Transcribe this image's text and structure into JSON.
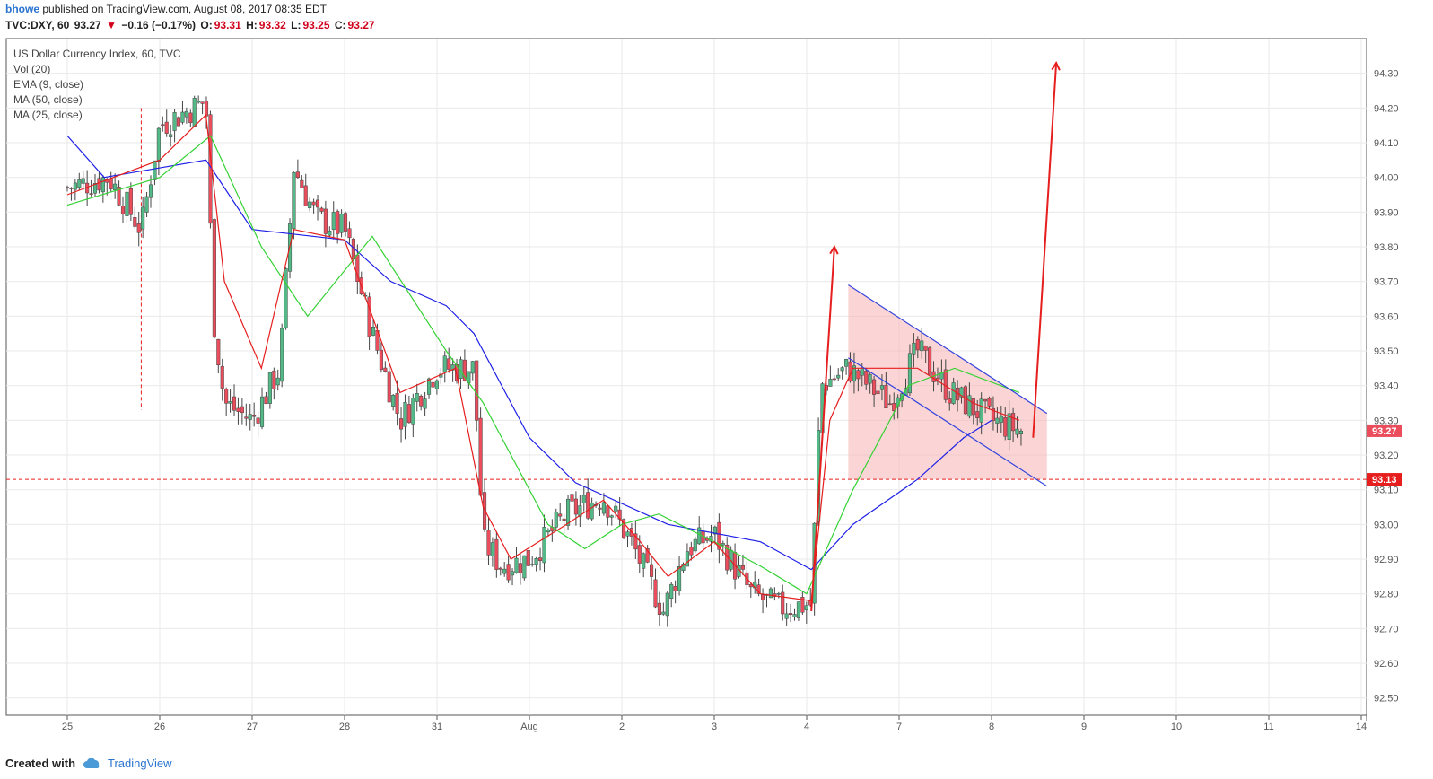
{
  "header": {
    "user": "bhowe",
    "published_text": "published on TradingView.com, August 08, 2017 08:35 EDT",
    "symbol": "TVC:DXY, 60",
    "last_price": "93.27",
    "change_arrow": "▼",
    "change": "−0.16 (−0.17%)",
    "o_label": "O:",
    "o_value": "93.31",
    "h_label": "H:",
    "h_value": "93.32",
    "l_label": "L:",
    "l_value": "93.25",
    "c_label": "C:",
    "c_value": "93.27"
  },
  "legend": {
    "title": "US Dollar Currency Index, 60, TVC",
    "items": [
      "Vol (20)",
      "EMA (9, close)",
      "MA (50, close)",
      "MA (25, close)"
    ]
  },
  "footer": {
    "created_with": "Created with",
    "brand": "TradingView"
  },
  "colors": {
    "up": "#53b987",
    "down": "#eb4d5c",
    "candle_edge": "#444444",
    "ema": "#e61e1e",
    "ma50": "#1e20e6",
    "ma25": "#35d235",
    "channel_fill": "#f7b3b3",
    "channel_line": "#3344dd",
    "arrow": "#e61e1e",
    "hline": "#e61e1e",
    "grid": "#e9e9e9"
  },
  "chart_data": {
    "type": "candlestick",
    "y_axis": {
      "min": 92.45,
      "max": 94.4,
      "ticks": [
        "92.50",
        "92.60",
        "92.70",
        "92.80",
        "92.90",
        "93.00",
        "93.10",
        "93.20",
        "93.30",
        "93.40",
        "93.50",
        "93.60",
        "93.70",
        "93.80",
        "93.90",
        "94.00",
        "94.10",
        "94.20",
        "94.30"
      ]
    },
    "x_axis": {
      "labels": [
        "25",
        "26",
        "27",
        "28",
        "31",
        "Aug",
        "2",
        "3",
        "4",
        "7",
        "8",
        "9",
        "10",
        "11",
        "14"
      ]
    },
    "price_labels": {
      "last": "93.27",
      "level": "93.13"
    },
    "horizontal_level": 93.13,
    "session_anchor": [
      {
        "x": 0,
        "p": 93.97
      },
      {
        "x": 0.45,
        "p": 94.0
      },
      {
        "x": 0.8,
        "p": 93.85
      },
      {
        "x": 1.0,
        "p": 94.15
      },
      {
        "x": 1.5,
        "p": 94.22
      },
      {
        "x": 1.58,
        "p": 93.6
      },
      {
        "x": 1.7,
        "p": 93.35
      },
      {
        "x": 2.0,
        "p": 93.3
      },
      {
        "x": 2.3,
        "p": 93.45
      },
      {
        "x": 2.45,
        "p": 94.03
      },
      {
        "x": 2.7,
        "p": 93.88
      },
      {
        "x": 3.0,
        "p": 93.85
      },
      {
        "x": 3.3,
        "p": 93.55
      },
      {
        "x": 3.6,
        "p": 93.3
      },
      {
        "x": 4.0,
        "p": 93.45
      },
      {
        "x": 4.4,
        "p": 93.45
      },
      {
        "x": 4.5,
        "p": 92.95
      },
      {
        "x": 4.7,
        "p": 92.88
      },
      {
        "x": 5.0,
        "p": 92.9
      },
      {
        "x": 5.4,
        "p": 93.03
      },
      {
        "x": 5.8,
        "p": 93.08
      },
      {
        "x": 6.1,
        "p": 92.95
      },
      {
        "x": 6.45,
        "p": 92.75
      },
      {
        "x": 6.7,
        "p": 92.93
      },
      {
        "x": 7.0,
        "p": 92.97
      },
      {
        "x": 7.4,
        "p": 92.8
      },
      {
        "x": 7.7,
        "p": 92.76
      },
      {
        "x": 8.05,
        "p": 92.77
      },
      {
        "x": 8.15,
        "p": 93.4
      },
      {
        "x": 8.45,
        "p": 93.45
      },
      {
        "x": 8.9,
        "p": 93.35
      },
      {
        "x": 9.2,
        "p": 93.5
      },
      {
        "x": 9.55,
        "p": 93.38
      },
      {
        "x": 10.0,
        "p": 93.3
      },
      {
        "x": 10.33,
        "p": 93.27
      }
    ],
    "ema9": [
      {
        "x": 0,
        "p": 93.95
      },
      {
        "x": 1.0,
        "p": 94.05
      },
      {
        "x": 1.5,
        "p": 94.18
      },
      {
        "x": 1.7,
        "p": 93.7
      },
      {
        "x": 2.1,
        "p": 93.45
      },
      {
        "x": 2.45,
        "p": 93.85
      },
      {
        "x": 3.0,
        "p": 93.82
      },
      {
        "x": 3.6,
        "p": 93.38
      },
      {
        "x": 4.2,
        "p": 93.45
      },
      {
        "x": 4.5,
        "p": 93.05
      },
      {
        "x": 4.8,
        "p": 92.9
      },
      {
        "x": 5.4,
        "p": 93.0
      },
      {
        "x": 5.8,
        "p": 93.07
      },
      {
        "x": 6.2,
        "p": 92.95
      },
      {
        "x": 6.5,
        "p": 92.85
      },
      {
        "x": 7.0,
        "p": 92.95
      },
      {
        "x": 7.5,
        "p": 92.8
      },
      {
        "x": 8.05,
        "p": 92.78
      },
      {
        "x": 8.25,
        "p": 93.3
      },
      {
        "x": 8.5,
        "p": 93.45
      },
      {
        "x": 9.2,
        "p": 93.45
      },
      {
        "x": 9.8,
        "p": 93.35
      },
      {
        "x": 10.3,
        "p": 93.3
      }
    ],
    "ma25": [
      {
        "x": 0,
        "p": 93.92
      },
      {
        "x": 1.0,
        "p": 94.0
      },
      {
        "x": 1.55,
        "p": 94.12
      },
      {
        "x": 2.1,
        "p": 93.8
      },
      {
        "x": 2.6,
        "p": 93.6
      },
      {
        "x": 3.3,
        "p": 93.83
      },
      {
        "x": 4.1,
        "p": 93.5
      },
      {
        "x": 4.5,
        "p": 93.35
      },
      {
        "x": 5.2,
        "p": 93.0
      },
      {
        "x": 5.6,
        "p": 92.93
      },
      {
        "x": 6.0,
        "p": 93.0
      },
      {
        "x": 6.4,
        "p": 93.03
      },
      {
        "x": 7.0,
        "p": 92.95
      },
      {
        "x": 7.5,
        "p": 92.88
      },
      {
        "x": 8.0,
        "p": 92.8
      },
      {
        "x": 8.5,
        "p": 93.1
      },
      {
        "x": 9.1,
        "p": 93.4
      },
      {
        "x": 9.6,
        "p": 93.45
      },
      {
        "x": 10.3,
        "p": 93.38
      }
    ],
    "ma50": [
      {
        "x": 0,
        "p": 94.12
      },
      {
        "x": 0.4,
        "p": 94.0
      },
      {
        "x": 1.5,
        "p": 94.05
      },
      {
        "x": 2.0,
        "p": 93.85
      },
      {
        "x": 3.0,
        "p": 93.82
      },
      {
        "x": 3.5,
        "p": 93.7
      },
      {
        "x": 4.1,
        "p": 93.63
      },
      {
        "x": 4.4,
        "p": 93.55
      },
      {
        "x": 5.0,
        "p": 93.25
      },
      {
        "x": 5.5,
        "p": 93.12
      },
      {
        "x": 6.5,
        "p": 93.0
      },
      {
        "x": 7.5,
        "p": 92.95
      },
      {
        "x": 8.05,
        "p": 92.87
      },
      {
        "x": 8.5,
        "p": 93.0
      },
      {
        "x": 9.2,
        "p": 93.13
      },
      {
        "x": 9.7,
        "p": 93.25
      },
      {
        "x": 10.0,
        "p": 93.3
      }
    ],
    "channel": {
      "upper": [
        {
          "x": 8.45,
          "p": 93.69
        },
        {
          "x": 10.6,
          "p": 93.32
        }
      ],
      "lower": [
        {
          "x": 8.45,
          "p": 93.48
        },
        {
          "x": 10.6,
          "p": 93.11
        }
      ],
      "fill_to": 93.13
    },
    "arrows": [
      {
        "from": {
          "x": 8.05,
          "p": 92.75
        },
        "to": {
          "x": 8.3,
          "p": 93.8
        }
      },
      {
        "from": {
          "x": 10.45,
          "p": 93.25
        },
        "to": {
          "x": 10.7,
          "p": 94.33
        }
      }
    ],
    "vertical_marker": {
      "x": 0.8,
      "from": 94.2,
      "to": 93.33
    }
  }
}
